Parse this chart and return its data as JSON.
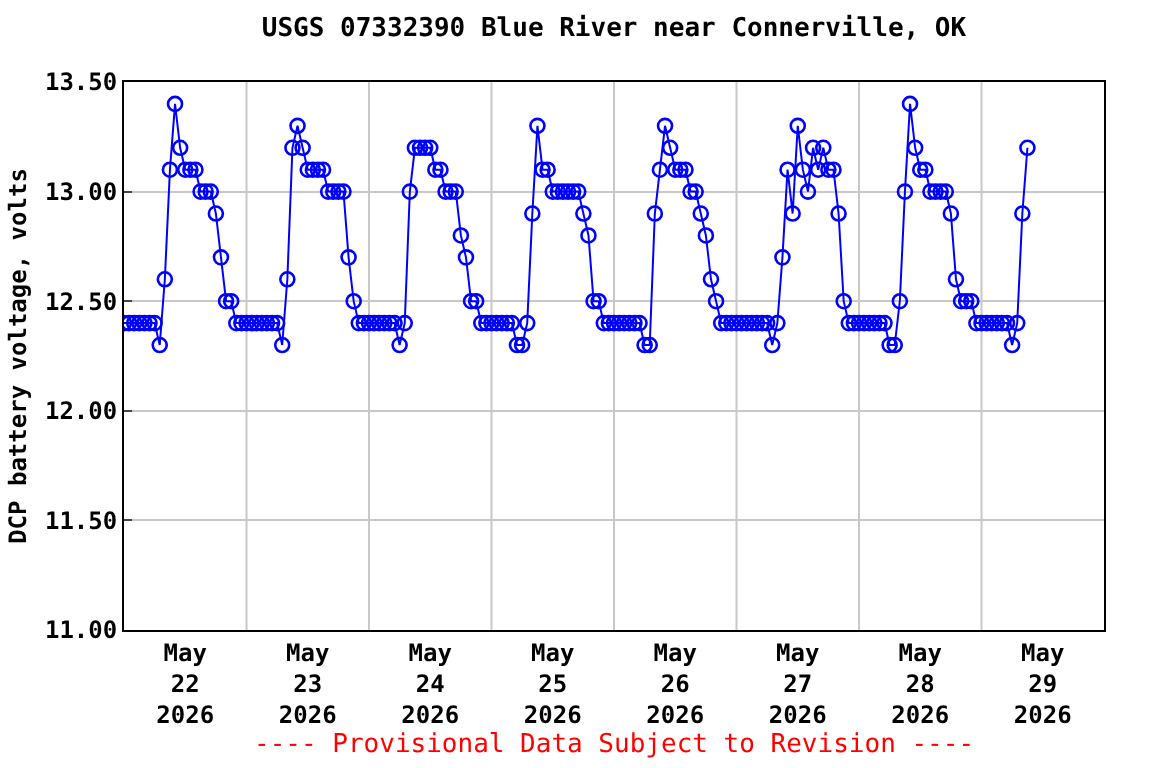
{
  "chart_data": {
    "type": "line",
    "title": "USGS 07332390 Blue River near Connerville, OK",
    "ylabel": "DCP battery voltage, volts",
    "annotations": [
      "---- Provisional Data Subject to Revision ----"
    ],
    "xlim": [
      "2026-05-22",
      "2026-05-30"
    ],
    "xticks": [
      {
        "value": "2026-05-22T12:00",
        "label": "May\n22\n2026"
      },
      {
        "value": "2026-05-23T12:00",
        "label": "May\n23\n2026"
      },
      {
        "value": "2026-05-24T12:00",
        "label": "May\n24\n2026"
      },
      {
        "value": "2026-05-25T12:00",
        "label": "May\n25\n2026"
      },
      {
        "value": "2026-05-26T12:00",
        "label": "May\n26\n2026"
      },
      {
        "value": "2026-05-27T12:00",
        "label": "May\n27\n2026"
      },
      {
        "value": "2026-05-28T12:00",
        "label": "May\n28\n2026"
      },
      {
        "value": "2026-05-29T12:00",
        "label": "May\n29\n2026"
      },
      {
        "value": "2026-05-23",
        "label": null
      },
      {
        "value": "2026-05-24",
        "label": null
      },
      {
        "value": "2026-05-25",
        "label": null
      },
      {
        "value": "2026-05-26",
        "label": null
      },
      {
        "value": "2026-05-27",
        "label": null
      },
      {
        "value": "2026-05-28",
        "label": null
      },
      {
        "value": "2026-05-29",
        "label": null
      }
    ],
    "ylim": [
      11.0,
      13.5
    ],
    "yticks": [
      {
        "value": 11.0,
        "label": "11.00"
      },
      {
        "value": 11.5,
        "label": "11.50"
      },
      {
        "value": 12.0,
        "label": "12.00"
      },
      {
        "value": 12.5,
        "label": "12.50"
      },
      {
        "value": 13.0,
        "label": "13.00"
      },
      {
        "value": 13.5,
        "label": "13.50"
      }
    ],
    "grid": true,
    "marker": "circle",
    "line_style": "solid",
    "x": [
      "2026-05-22T00:00",
      "2026-05-22T01:00",
      "2026-05-22T02:00",
      "2026-05-22T03:00",
      "2026-05-22T04:00",
      "2026-05-22T05:00",
      "2026-05-22T06:00",
      "2026-05-22T07:00",
      "2026-05-22T08:00",
      "2026-05-22T09:00",
      "2026-05-22T10:00",
      "2026-05-22T11:00",
      "2026-05-22T12:00",
      "2026-05-22T13:00",
      "2026-05-22T14:00",
      "2026-05-22T15:00",
      "2026-05-22T16:00",
      "2026-05-22T17:00",
      "2026-05-22T18:00",
      "2026-05-22T19:00",
      "2026-05-22T20:00",
      "2026-05-22T21:00",
      "2026-05-22T22:00",
      "2026-05-22T23:00",
      "2026-05-23T00:00",
      "2026-05-23T01:00",
      "2026-05-23T02:00",
      "2026-05-23T03:00",
      "2026-05-23T04:00",
      "2026-05-23T05:00",
      "2026-05-23T06:00",
      "2026-05-23T07:00",
      "2026-05-23T08:00",
      "2026-05-23T09:00",
      "2026-05-23T10:00",
      "2026-05-23T11:00",
      "2026-05-23T12:00",
      "2026-05-23T13:00",
      "2026-05-23T14:00",
      "2026-05-23T15:00",
      "2026-05-23T16:00",
      "2026-05-23T17:00",
      "2026-05-23T18:00",
      "2026-05-23T19:00",
      "2026-05-23T20:00",
      "2026-05-23T21:00",
      "2026-05-23T22:00",
      "2026-05-23T23:00",
      "2026-05-24T00:00",
      "2026-05-24T01:00",
      "2026-05-24T02:00",
      "2026-05-24T03:00",
      "2026-05-24T04:00",
      "2026-05-24T05:00",
      "2026-05-24T06:00",
      "2026-05-24T07:00",
      "2026-05-24T08:00",
      "2026-05-24T09:00",
      "2026-05-24T10:00",
      "2026-05-24T11:00",
      "2026-05-24T12:00",
      "2026-05-24T13:00",
      "2026-05-24T14:00",
      "2026-05-24T15:00",
      "2026-05-24T16:00",
      "2026-05-24T17:00",
      "2026-05-24T18:00",
      "2026-05-24T19:00",
      "2026-05-24T20:00",
      "2026-05-24T21:00",
      "2026-05-24T22:00",
      "2026-05-24T23:00",
      "2026-05-25T00:00",
      "2026-05-25T01:00",
      "2026-05-25T02:00",
      "2026-05-25T03:00",
      "2026-05-25T04:00",
      "2026-05-25T05:00",
      "2026-05-25T06:00",
      "2026-05-25T07:00",
      "2026-05-25T08:00",
      "2026-05-25T09:00",
      "2026-05-25T10:00",
      "2026-05-25T11:00",
      "2026-05-25T12:00",
      "2026-05-25T13:00",
      "2026-05-25T14:00",
      "2026-05-25T15:00",
      "2026-05-25T16:00",
      "2026-05-25T17:00",
      "2026-05-25T18:00",
      "2026-05-25T19:00",
      "2026-05-25T20:00",
      "2026-05-25T21:00",
      "2026-05-25T22:00",
      "2026-05-25T23:00",
      "2026-05-26T00:00",
      "2026-05-26T01:00",
      "2026-05-26T02:00",
      "2026-05-26T03:00",
      "2026-05-26T04:00",
      "2026-05-26T05:00",
      "2026-05-26T06:00",
      "2026-05-26T07:00",
      "2026-05-26T08:00",
      "2026-05-26T09:00",
      "2026-05-26T10:00",
      "2026-05-26T11:00",
      "2026-05-26T12:00",
      "2026-05-26T13:00",
      "2026-05-26T14:00",
      "2026-05-26T15:00",
      "2026-05-26T16:00",
      "2026-05-26T17:00",
      "2026-05-26T18:00",
      "2026-05-26T19:00",
      "2026-05-26T20:00",
      "2026-05-26T21:00",
      "2026-05-26T22:00",
      "2026-05-26T23:00",
      "2026-05-27T00:00",
      "2026-05-27T01:00",
      "2026-05-27T02:00",
      "2026-05-27T03:00",
      "2026-05-27T04:00",
      "2026-05-27T05:00",
      "2026-05-27T06:00",
      "2026-05-27T07:00",
      "2026-05-27T08:00",
      "2026-05-27T09:00",
      "2026-05-27T10:00",
      "2026-05-27T11:00",
      "2026-05-27T12:00",
      "2026-05-27T13:00",
      "2026-05-27T14:00",
      "2026-05-27T15:00",
      "2026-05-27T16:00",
      "2026-05-27T17:00",
      "2026-05-27T18:00",
      "2026-05-27T19:00",
      "2026-05-27T20:00",
      "2026-05-27T21:00",
      "2026-05-27T22:00",
      "2026-05-27T23:00",
      "2026-05-28T00:00",
      "2026-05-28T01:00",
      "2026-05-28T02:00",
      "2026-05-28T03:00",
      "2026-05-28T04:00",
      "2026-05-28T05:00",
      "2026-05-28T06:00",
      "2026-05-28T07:00",
      "2026-05-28T08:00",
      "2026-05-28T09:00",
      "2026-05-28T10:00",
      "2026-05-28T11:00",
      "2026-05-28T12:00",
      "2026-05-28T13:00",
      "2026-05-28T14:00",
      "2026-05-28T15:00",
      "2026-05-28T16:00",
      "2026-05-28T17:00",
      "2026-05-28T18:00",
      "2026-05-28T19:00",
      "2026-05-28T20:00",
      "2026-05-28T21:00",
      "2026-05-28T22:00",
      "2026-05-28T23:00",
      "2026-05-29T00:00",
      "2026-05-29T01:00",
      "2026-05-29T02:00",
      "2026-05-29T03:00",
      "2026-05-29T04:00",
      "2026-05-29T05:00",
      "2026-05-29T06:00",
      "2026-05-29T07:00",
      "2026-05-29T08:00",
      "2026-05-29T09:00"
    ],
    "series": [
      {
        "color": "#0000ff",
        "values": [
          12.4,
          12.4,
          12.4,
          12.4,
          12.4,
          12.4,
          12.4,
          12.3,
          12.6,
          13.1,
          13.4,
          13.2,
          13.1,
          13.1,
          13.1,
          13.0,
          13.0,
          13.0,
          12.9,
          12.7,
          12.5,
          12.5,
          12.4,
          12.4,
          12.4,
          12.4,
          12.4,
          12.4,
          12.4,
          12.4,
          12.4,
          12.3,
          12.6,
          13.2,
          13.3,
          13.2,
          13.1,
          13.1,
          13.1,
          13.1,
          13.0,
          13.0,
          13.0,
          13.0,
          12.7,
          12.5,
          12.4,
          12.4,
          12.4,
          12.4,
          12.4,
          12.4,
          12.4,
          12.4,
          12.3,
          12.4,
          13.0,
          13.2,
          13.2,
          13.2,
          13.2,
          13.1,
          13.1,
          13.0,
          13.0,
          13.0,
          12.8,
          12.7,
          12.5,
          12.5,
          12.4,
          12.4,
          12.4,
          12.4,
          12.4,
          12.4,
          12.4,
          12.3,
          12.3,
          12.4,
          12.9,
          13.3,
          13.1,
          13.1,
          13.0,
          13.0,
          13.0,
          13.0,
          13.0,
          13.0,
          12.9,
          12.8,
          12.5,
          12.5,
          12.4,
          12.4,
          12.4,
          12.4,
          12.4,
          12.4,
          12.4,
          12.4,
          12.3,
          12.3,
          12.9,
          13.1,
          13.3,
          13.2,
          13.1,
          13.1,
          13.1,
          13.0,
          13.0,
          12.9,
          12.8,
          12.6,
          12.5,
          12.4,
          12.4,
          12.4,
          12.4,
          12.4,
          12.4,
          12.4,
          12.4,
          12.4,
          12.4,
          12.3,
          12.4,
          12.7,
          13.1,
          12.9,
          13.3,
          13.1,
          13.0,
          13.2,
          13.1,
          13.2,
          13.1,
          13.1,
          12.9,
          12.5,
          12.4,
          12.4,
          12.4,
          12.4,
          12.4,
          12.4,
          12.4,
          12.4,
          12.3,
          12.3,
          12.5,
          13.0,
          13.4,
          13.2,
          13.1,
          13.1,
          13.0,
          13.0,
          13.0,
          13.0,
          12.9,
          12.6,
          12.5,
          12.5,
          12.5,
          12.4,
          12.4,
          12.4,
          12.4,
          12.4,
          12.4,
          12.4,
          12.3,
          12.4,
          12.9,
          13.2
        ]
      }
    ]
  }
}
